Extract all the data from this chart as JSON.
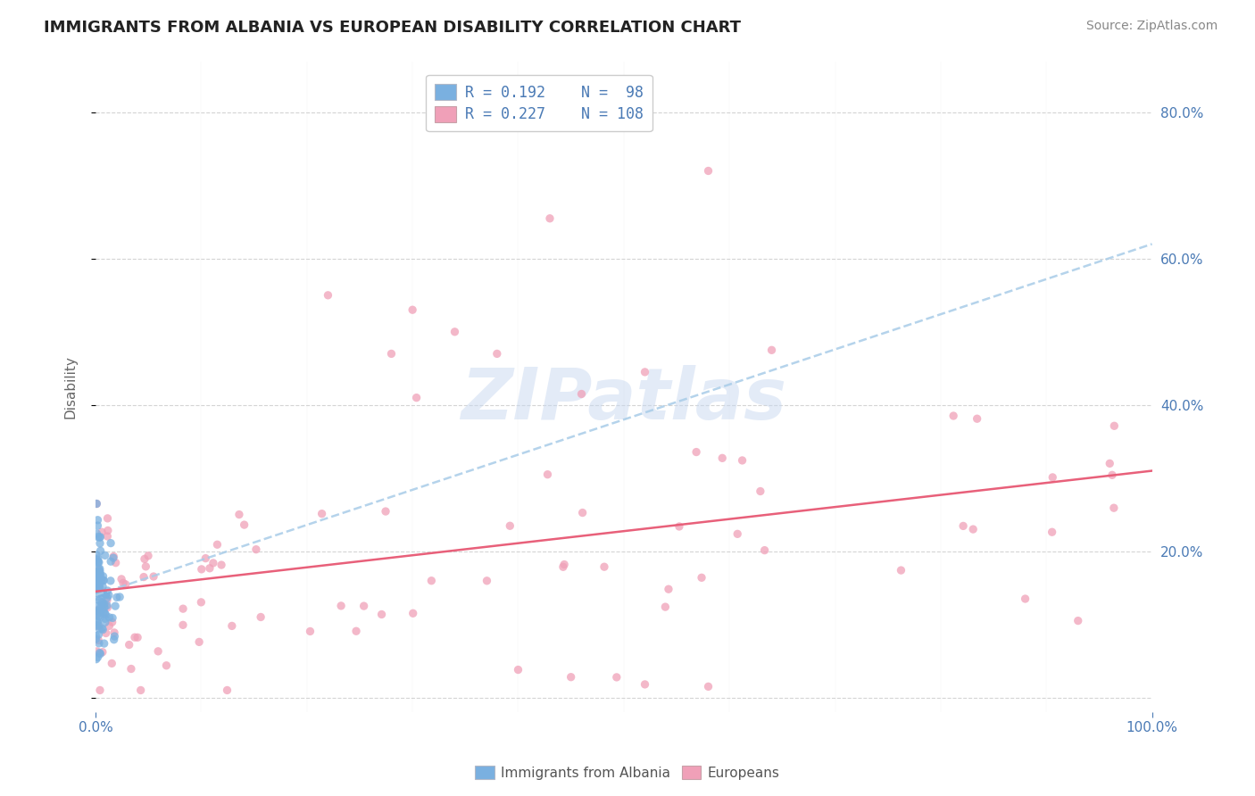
{
  "title": "IMMIGRANTS FROM ALBANIA VS EUROPEAN DISABILITY CORRELATION CHART",
  "source_text": "Source: ZipAtlas.com",
  "ylabel": "Disability",
  "xlim": [
    0.0,
    1.0
  ],
  "ylim": [
    -0.02,
    0.87
  ],
  "blue_color": "#7ab0e0",
  "pink_color": "#f0a0b8",
  "blue_line_color": "#a8cce8",
  "pink_line_color": "#e8607a",
  "r_blue": 0.192,
  "n_blue": 98,
  "r_pink": 0.227,
  "n_pink": 108,
  "watermark": "ZIPatlas",
  "watermark_color": "#c8d8f0",
  "background_color": "#ffffff",
  "grid_color": "#d0d0d0",
  "blue_intercept": 0.14,
  "blue_slope": 0.48,
  "pink_intercept": 0.145,
  "pink_slope": 0.165,
  "title_fontsize": 13,
  "source_fontsize": 10,
  "axis_tick_fontsize": 11,
  "legend_fontsize": 12,
  "watermark_fontsize": 58,
  "scatter_size": 45
}
